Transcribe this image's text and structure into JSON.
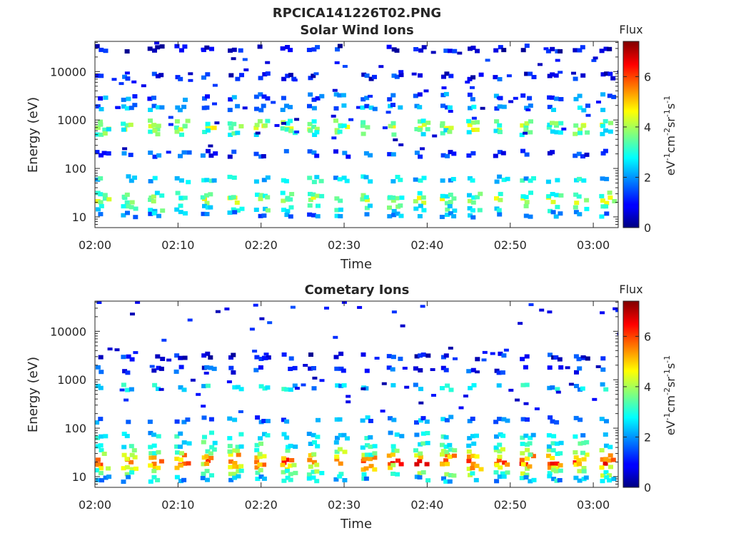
{
  "figure": {
    "title": "RPCICA141226T02.PNG"
  },
  "colorbar": {
    "label": "Flux",
    "units_parts": [
      "eV",
      "-1",
      "cm",
      "-2",
      "sr",
      "-1",
      "s",
      "-1"
    ],
    "ticks": [
      "0",
      "2",
      "4",
      "6"
    ],
    "range": [
      0,
      7.4
    ],
    "colormap": "jet"
  },
  "chart_data": [
    {
      "type": "heatmap",
      "title": "Solar Wind Ions",
      "xlabel": "Time",
      "ylabel": "Energy (eV)",
      "y_scale": "log",
      "ylim": [
        6,
        42000
      ],
      "xlim": [
        "02:00",
        "03:03"
      ],
      "x_ticks": [
        "02:00",
        "02:10",
        "02:20",
        "02:30",
        "02:40",
        "02:50",
        "03:00"
      ],
      "y_ticks": [
        "10",
        "100",
        "1000",
        "10000"
      ],
      "scan_period_min": 3.2,
      "energy_bands": [
        {
          "energy_ev": 22,
          "flux": 4.0
        },
        {
          "energy_ev": 15,
          "flux": 3.0
        },
        {
          "energy_ev": 28,
          "flux": 3.2
        },
        {
          "energy_ev": 11,
          "flux": 2.0
        },
        {
          "energy_ev": 700,
          "flux": 4.0
        },
        {
          "energy_ev": 850,
          "flux": 3.4
        },
        {
          "energy_ev": 560,
          "flux": 3.2
        },
        {
          "energy_ev": 1800,
          "flux": 2.0
        },
        {
          "energy_ev": 3000,
          "flux": 1.6
        },
        {
          "energy_ev": 8000,
          "flux": 1.0
        },
        {
          "energy_ev": 30000,
          "flux": 0.8
        },
        {
          "energy_ev": 60,
          "flux": 2.6
        },
        {
          "energy_ev": 200,
          "flux": 1.3
        }
      ]
    },
    {
      "type": "heatmap",
      "title": "Cometary Ions",
      "xlabel": "Time",
      "ylabel": "Energy (eV)",
      "y_scale": "log",
      "ylim": [
        6,
        42000
      ],
      "xlim": [
        "02:00",
        "03:03"
      ],
      "x_ticks": [
        "02:00",
        "02:10",
        "02:20",
        "02:30",
        "02:40",
        "02:50",
        "03:00"
      ],
      "y_ticks": [
        "10",
        "100",
        "1000",
        "10000"
      ],
      "scan_period_min": 3.2,
      "energy_bands": [
        {
          "energy_ev": 20,
          "flux": 6.0
        },
        {
          "energy_ev": 25,
          "flux": 5.0
        },
        {
          "energy_ev": 16,
          "flux": 4.8
        },
        {
          "energy_ev": 32,
          "flux": 3.6
        },
        {
          "energy_ev": 12,
          "flux": 3.6
        },
        {
          "energy_ev": 45,
          "flux": 3.0
        },
        {
          "energy_ev": 9,
          "flux": 2.4
        },
        {
          "energy_ev": 70,
          "flux": 2.6
        },
        {
          "energy_ev": 700,
          "flux": 2.5
        },
        {
          "energy_ev": 1600,
          "flux": 1.2
        },
        {
          "energy_ev": 3000,
          "flux": 0.9
        },
        {
          "energy_ev": 150,
          "flux": 1.8
        }
      ]
    }
  ]
}
